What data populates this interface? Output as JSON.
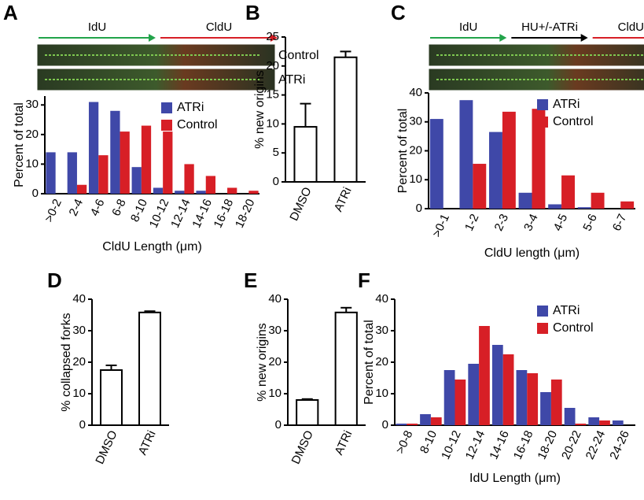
{
  "chart_data": [
    {
      "type": "bar",
      "panel": "A",
      "xlabel": "CldU Length (μm)",
      "ylabel": "Percent of total",
      "fiber": {
        "arrows": [
          "IdU",
          "CldU"
        ],
        "rows": [
          "Control",
          "ATRi"
        ]
      },
      "categories": [
        ">0-2",
        "2-4",
        "4-6",
        "6-8",
        "8-10",
        "10-12",
        "12-14",
        "14-16",
        "16-18",
        "18-20"
      ],
      "series": [
        {
          "name": "ATRi",
          "color": "#3f48a8",
          "values": [
            14,
            14,
            31,
            28,
            9,
            2,
            1,
            1,
            0,
            0
          ]
        },
        {
          "name": "Control",
          "color": "#d71f26",
          "values": [
            0,
            3,
            13,
            21,
            23,
            21,
            10,
            6,
            2,
            1
          ]
        }
      ],
      "ylim": [
        0,
        33
      ],
      "yticks": [
        0,
        10,
        20,
        30
      ],
      "legend": "upper right"
    },
    {
      "type": "bar",
      "panel": "B",
      "ylabel": "% new origins",
      "categories": [
        "DMSO",
        "ATRi"
      ],
      "values": [
        9.5,
        21.5
      ],
      "errors": [
        4,
        1
      ],
      "color": "#ffffff",
      "ylim": [
        0,
        25
      ],
      "yticks": [
        0,
        5,
        10,
        15,
        20,
        25
      ]
    },
    {
      "type": "bar",
      "panel": "C",
      "xlabel": "CldU length (μm)",
      "ylabel": "Percent of total",
      "fiber": {
        "arrows": [
          "IdU",
          "HU+/-ATRi",
          "CldU"
        ],
        "rows": [
          "Control",
          "ATRi"
        ]
      },
      "categories": [
        ">0-1",
        "1-2",
        "2-3",
        "3-4",
        "4-5",
        "5-6",
        "6-7"
      ],
      "series": [
        {
          "name": "ATRi",
          "color": "#3f48a8",
          "values": [
            31,
            37.5,
            26.5,
            5.5,
            1.5,
            0.5,
            0
          ]
        },
        {
          "name": "Control",
          "color": "#d71f26",
          "values": [
            0,
            15.5,
            33.5,
            34.5,
            11.5,
            5.5,
            2.5
          ]
        }
      ],
      "ylim": [
        0,
        40
      ],
      "yticks": [
        0,
        10,
        20,
        30,
        40
      ],
      "legend": "upper right"
    },
    {
      "type": "bar",
      "panel": "D",
      "ylabel": "% collapsed forks",
      "categories": [
        "DMSO",
        "ATRi"
      ],
      "values": [
        17.5,
        35.8
      ],
      "errors": [
        1.5,
        0.4
      ],
      "color": "#ffffff",
      "ylim": [
        0,
        40
      ],
      "yticks": [
        0,
        10,
        20,
        30,
        40
      ]
    },
    {
      "type": "bar",
      "panel": "E",
      "ylabel": "% new origins",
      "categories": [
        "DMSO",
        "ATRi"
      ],
      "values": [
        8,
        35.8
      ],
      "errors": [
        0.3,
        1.5
      ],
      "color": "#ffffff",
      "ylim": [
        0,
        40
      ],
      "yticks": [
        0,
        10,
        20,
        30,
        40
      ]
    },
    {
      "type": "bar",
      "panel": "F",
      "xlabel": "IdU Length (μm)",
      "ylabel": "Percent of total",
      "categories": [
        ">0-8",
        "8-10",
        "10-12",
        "12-14",
        "14-16",
        "16-18",
        "18-20",
        "20-22",
        "22-24",
        "24-26"
      ],
      "series": [
        {
          "name": "ATRi",
          "color": "#3f48a8",
          "values": [
            0.5,
            3.5,
            17.5,
            19.5,
            25.5,
            17.5,
            10.5,
            5.5,
            2.5,
            1.5
          ]
        },
        {
          "name": "Control",
          "color": "#d71f26",
          "values": [
            0.5,
            2.5,
            14.5,
            31.5,
            22.5,
            16.5,
            14.5,
            0.5,
            1.5,
            0
          ]
        }
      ],
      "ylim": [
        0,
        40
      ],
      "yticks": [
        0,
        10,
        20,
        30,
        40
      ],
      "legend": "upper right"
    }
  ]
}
